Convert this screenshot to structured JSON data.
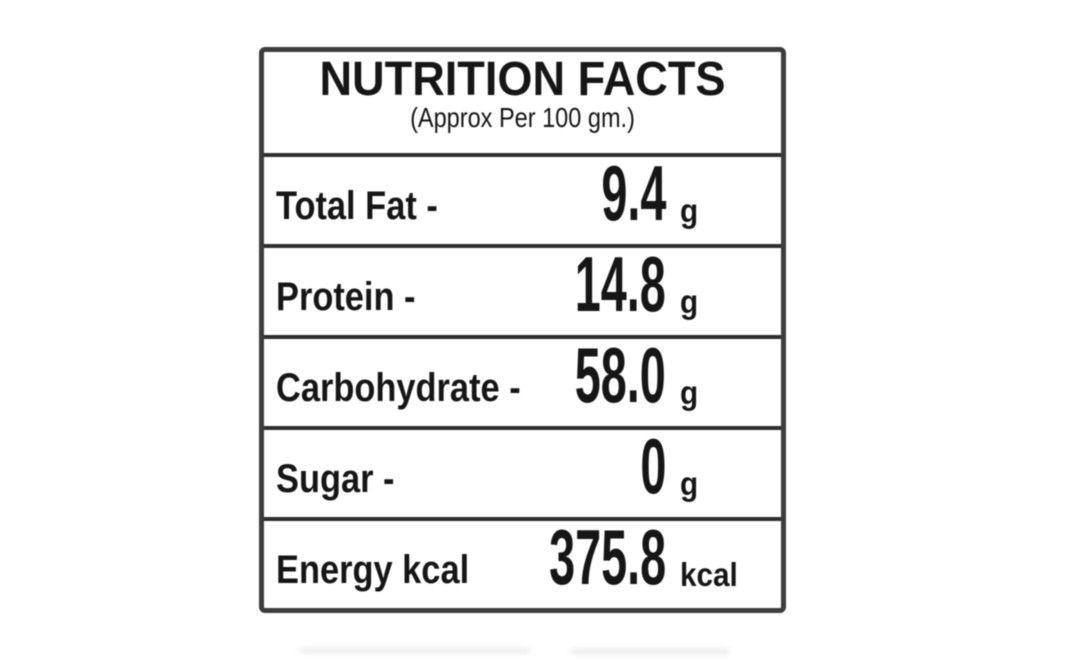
{
  "nutrition_label": {
    "title": "NUTRITION FACTS",
    "subtitle": "(Approx Per 100 gm.)",
    "rows": [
      {
        "name": "Total Fat -",
        "value": "9.4",
        "unit": "g"
      },
      {
        "name": "Protein -",
        "value": "14.8",
        "unit": "g"
      },
      {
        "name": "Carbohydrate -",
        "value": "58.0",
        "unit": "g"
      },
      {
        "name": "Sugar -",
        "value": "0",
        "unit": "g"
      },
      {
        "name": "Energy kcal",
        "value": "375.8",
        "unit": "kcal"
      }
    ],
    "colors": {
      "text": "#161616",
      "border": "#3d3d3d",
      "divider": "#2e2e2e",
      "background": "#ffffff"
    }
  }
}
